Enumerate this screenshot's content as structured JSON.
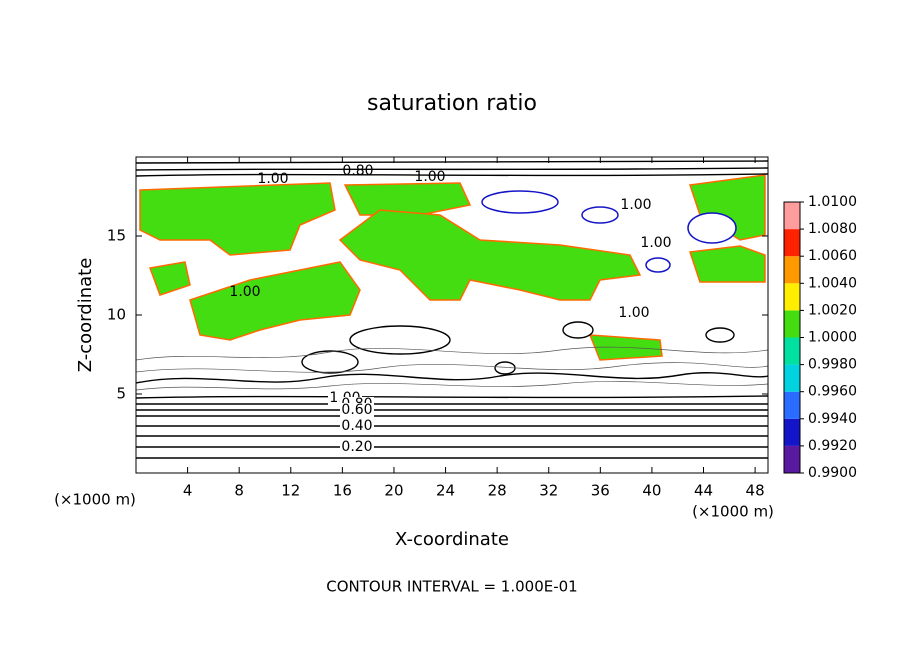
{
  "chart_data": {
    "type": "contour",
    "title": "saturation ratio",
    "xlabel": "X-coordinate",
    "ylabel": "Z-coordinate",
    "x_unit": "(×1000 m)",
    "y_unit": "(×1000 m)",
    "footer": "CONTOUR INTERVAL = 1.000E-01",
    "xlim": [
      0,
      49
    ],
    "ylim": [
      0,
      20
    ],
    "xticks": [
      4,
      8,
      12,
      16,
      20,
      24,
      28,
      32,
      36,
      40,
      44,
      48
    ],
    "yticks": [
      5,
      10,
      15
    ],
    "contour_labels": [
      "1.00",
      "0.80",
      "1.00",
      "1.00",
      "1.00",
      "1.00",
      "1.00",
      "1.00",
      "0.80",
      "0.60",
      "0.40",
      "0.20"
    ],
    "colorbar": {
      "ticks": [
        {
          "value": 0.99,
          "label": "0.9900"
        },
        {
          "value": 0.992,
          "label": "0.9920"
        },
        {
          "value": 0.994,
          "label": "0.9940"
        },
        {
          "value": 0.996,
          "label": "0.9960"
        },
        {
          "value": 0.998,
          "label": "0.9980"
        },
        {
          "value": 1.0,
          "label": "1.0000"
        },
        {
          "value": 1.002,
          "label": "1.0020"
        },
        {
          "value": 1.004,
          "label": "1.0040"
        },
        {
          "value": 1.006,
          "label": "1.0060"
        },
        {
          "value": 1.008,
          "label": "1.0080"
        },
        {
          "value": 1.01,
          "label": "1.0100"
        }
      ],
      "colors": [
        "#5a1aa0",
        "#1414c8",
        "#2a6cff",
        "#00d2e0",
        "#00e0a0",
        "#44dd11",
        "#ffee00",
        "#ff9900",
        "#ff2200",
        "#ff9c9c"
      ]
    }
  }
}
